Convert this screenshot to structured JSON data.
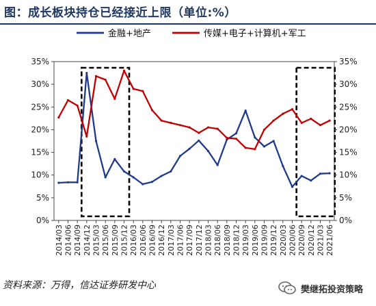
{
  "page": {
    "title": "图：成长板块持仓已经接近上限（单位:%）",
    "source": "资料来源：万得，信达证券研发中心",
    "watermark": "樊继拓投资策略"
  },
  "colors": {
    "series1": "#1f3a8a",
    "series2": "#c00000",
    "title": "#1f3864"
  },
  "chart_data": {
    "type": "line",
    "title": "成长板块持仓已经接近上限（单位:%）",
    "xlabel": "",
    "ylabel": "",
    "ylim": [
      0,
      35
    ],
    "y_ticks": [
      0,
      5,
      10,
      15,
      20,
      25,
      30,
      35
    ],
    "y_tick_labels": [
      "0%",
      "5%",
      "10%",
      "15%",
      "20%",
      "25%",
      "30%",
      "35%"
    ],
    "grid": false,
    "legend_position": "top",
    "x_labels": [
      "2014/03",
      "2014/06",
      "2014/09",
      "2014/12",
      "2015/03",
      "2015/06",
      "2015/09",
      "2015/12",
      "2016/03",
      "2016/06",
      "2016/09",
      "2016/12",
      "2017/03",
      "2017/06",
      "2017/09",
      "2017/12",
      "2018/03",
      "2018/06",
      "2018/09",
      "2018/12",
      "2019/03",
      "2019/06",
      "2019/09",
      "2019/12",
      "2020/03",
      "2020/06",
      "2020/09",
      "2020/12",
      "2021/03",
      "2021/06"
    ],
    "series": [
      {
        "name": "金融+地产",
        "color": "#1f3a8a",
        "values": [
          8.3,
          8.4,
          8.4,
          32.5,
          17.5,
          9.5,
          13.5,
          10.8,
          9.5,
          8.0,
          8.5,
          9.8,
          10.8,
          14.2,
          15.8,
          17.6,
          15.3,
          12.2,
          17.8,
          19.2,
          24.2,
          18.3,
          16.3,
          17.5,
          12.0,
          7.4,
          9.8,
          8.8,
          10.3,
          10.4
        ]
      },
      {
        "name": "传媒+电子+计算机+军工",
        "color": "#c00000",
        "values": [
          22.7,
          26.5,
          25.3,
          18.5,
          31.8,
          31.0,
          26.8,
          33.0,
          29.0,
          28.5,
          24.3,
          22.0,
          21.5,
          21.0,
          20.5,
          19.3,
          20.5,
          20.2,
          18.2,
          18.0,
          16.0,
          15.7,
          20.0,
          22.0,
          23.5,
          24.5,
          21.5,
          22.4,
          21.0,
          22.0
        ]
      }
    ],
    "highlight_ranges": [
      {
        "from": "2014/12",
        "to": "2015/12"
      },
      {
        "from": "2020/09",
        "to": "2021/06"
      }
    ]
  }
}
